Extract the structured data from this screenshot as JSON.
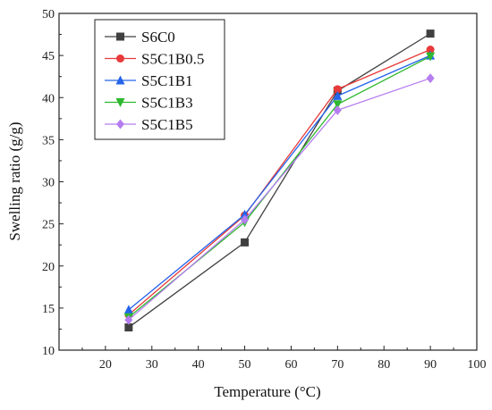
{
  "chart_data": {
    "type": "line",
    "xlabel": "Temperature (°C)",
    "ylabel": "Swelling ratio (g/g)",
    "xlim": [
      10,
      100
    ],
    "ylim": [
      10,
      50
    ],
    "xticks": [
      20,
      30,
      40,
      50,
      60,
      70,
      80,
      90,
      100
    ],
    "yticks": [
      10,
      15,
      20,
      25,
      30,
      35,
      40,
      45,
      50
    ],
    "grid": false,
    "legend_position": "top-left",
    "x": [
      25,
      50,
      70,
      90
    ],
    "series": [
      {
        "name": "S6C0",
        "values": [
          12.7,
          22.8,
          40.8,
          47.6
        ],
        "color": "#404040",
        "marker": "square"
      },
      {
        "name": "S5C1B0.5",
        "values": [
          14.2,
          26.0,
          41.0,
          45.7
        ],
        "color": "#e83a3a",
        "marker": "circle"
      },
      {
        "name": "S5C1B1",
        "values": [
          14.8,
          26.1,
          40.2,
          45.0
        ],
        "color": "#2463eb",
        "marker": "triangle-up"
      },
      {
        "name": "S5C1B3",
        "values": [
          13.9,
          25.2,
          39.2,
          44.9
        ],
        "color": "#2eb82e",
        "marker": "triangle-down"
      },
      {
        "name": "S5C1B5",
        "values": [
          13.6,
          25.5,
          38.5,
          42.3
        ],
        "color": "#b57df0",
        "marker": "diamond"
      }
    ]
  }
}
